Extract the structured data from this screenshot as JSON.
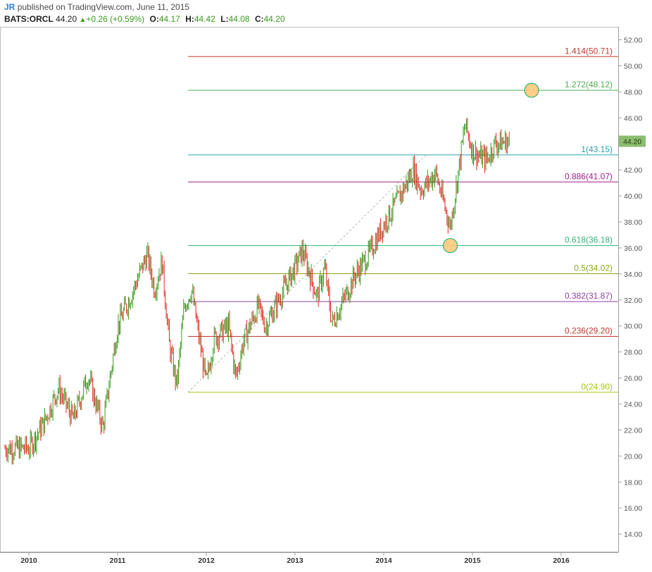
{
  "header": {
    "author": "JR",
    "published_text": "published on TradingView.com, June 11, 2015",
    "symbol": "BATS:ORCL",
    "last": "44.20",
    "change": "+0.26 (+0.59%)",
    "open_label": "O:",
    "open": "44.17",
    "high_label": "H:",
    "high": "44.42",
    "low_label": "L:",
    "low": "44.08",
    "close_label": "C:",
    "close": "44.20"
  },
  "colors": {
    "up": "#3a9a1e",
    "down": "#e0281e",
    "axis_text": "#555555",
    "price_tag_bg": "#8dbd6e",
    "marker_fill": "#ffc97a"
  },
  "chart_data": {
    "type": "candlestick",
    "x_axis": {
      "ticks": [
        "2010",
        "2011",
        "2012",
        "2013",
        "2014",
        "2015",
        "2016"
      ]
    },
    "y_axis": {
      "range": [
        12.6,
        53.0
      ],
      "ticks": [
        "14.00",
        "16.00",
        "18.00",
        "20.00",
        "22.00",
        "24.00",
        "26.00",
        "28.00",
        "30.00",
        "32.00",
        "34.00",
        "36.00",
        "38.00",
        "40.00",
        "42.00",
        "44.00",
        "46.00",
        "48.00",
        "50.00",
        "52.00"
      ]
    },
    "last_price_tag": "44.20",
    "price_anchors": [
      [
        "2010-01",
        20.6
      ],
      [
        "2010-03",
        22.5
      ],
      [
        "2010-05",
        25.2
      ],
      [
        "2010-07",
        22.8
      ],
      [
        "2010-09",
        26.2
      ],
      [
        "2010-11",
        22.2
      ],
      [
        "2011-01",
        30.0
      ],
      [
        "2011-03",
        32.6
      ],
      [
        "2011-05",
        35.5
      ],
      [
        "2011-06",
        32.8
      ],
      [
        "2011-07",
        35.0
      ],
      [
        "2011-08",
        28.5
      ],
      [
        "2011-09",
        25.4
      ],
      [
        "2011-10",
        31.5
      ],
      [
        "2011-11",
        32.8
      ],
      [
        "2012-01",
        25.5
      ],
      [
        "2012-02",
        29.0
      ],
      [
        "2012-04",
        30.0
      ],
      [
        "2012-05",
        26.0
      ],
      [
        "2012-06",
        28.8
      ],
      [
        "2012-08",
        31.5
      ],
      [
        "2012-09",
        30.0
      ],
      [
        "2013-01",
        34.5
      ],
      [
        "2013-02",
        35.8
      ],
      [
        "2013-03",
        34.0
      ],
      [
        "2013-04",
        32.2
      ],
      [
        "2013-05",
        34.5
      ],
      [
        "2013-06",
        30.2
      ],
      [
        "2013-08",
        32.5
      ],
      [
        "2013-09",
        33.8
      ],
      [
        "2013-11",
        35.5
      ],
      [
        "2014-01",
        37.8
      ],
      [
        "2014-03",
        39.8
      ],
      [
        "2014-05",
        42.0
      ],
      [
        "2014-06",
        40.5
      ],
      [
        "2014-07",
        41.0
      ],
      [
        "2014-08",
        41.8
      ],
      [
        "2014-10",
        37.6
      ],
      [
        "2014-11",
        41.5
      ],
      [
        "2014-12",
        45.5
      ],
      [
        "2015-01",
        43.5
      ],
      [
        "2015-02",
        43.0
      ],
      [
        "2015-03",
        42.8
      ],
      [
        "2015-04",
        44.0
      ],
      [
        "2015-06",
        44.2
      ]
    ],
    "fibonacci": {
      "swing_low": 24.9,
      "swing_high": 43.15,
      "levels": [
        {
          "label": "1.414(50.71)",
          "price": 50.71,
          "color": "#c0392b"
        },
        {
          "label": "1.272(48.12)",
          "price": 48.12,
          "color": "#4caf50"
        },
        {
          "label": "1(43.15)",
          "price": 43.15,
          "color": "#2ea0b5"
        },
        {
          "label": "0.886(41.07)",
          "price": 41.07,
          "color": "#a0208e"
        },
        {
          "label": "0.618(36.18)",
          "price": 36.18,
          "color": "#2fb57a"
        },
        {
          "label": "0.5(34.02)",
          "price": 34.02,
          "color": "#8aa61b"
        },
        {
          "label": "0.382(31.87)",
          "price": 31.87,
          "color": "#8e3fa8"
        },
        {
          "label": "0.236(29.20)",
          "price": 29.2,
          "color": "#c0392b"
        },
        {
          "label": "0(24.90)",
          "price": 24.9,
          "color": "#a9c11c"
        }
      ]
    },
    "markers": [
      {
        "date": "2015-09",
        "price": 48.12
      },
      {
        "date": "2014-10",
        "price": 36.18
      }
    ]
  }
}
